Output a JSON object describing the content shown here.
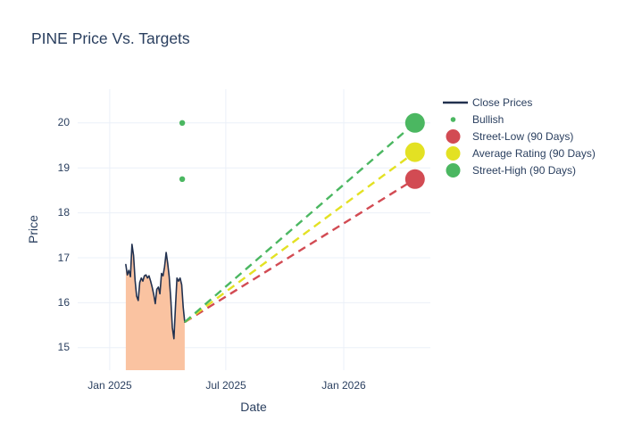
{
  "title": "PINE Price Vs. Targets",
  "colors": {
    "background": "#ffffff",
    "text": "#2a3f5f",
    "grid": "#ebf0f8",
    "close_line": "#22314f",
    "close_fill": "#fac3a1",
    "bullish": "#4bb761",
    "street_low": "#d24b53",
    "average_rating": "#e3e123",
    "street_high": "#4bb761"
  },
  "legend": {
    "items": [
      {
        "label": "Close Prices",
        "swatch": "line"
      },
      {
        "label": "Bullish",
        "swatch": "small-dot"
      },
      {
        "label": "Street-Low (90 Days)",
        "swatch": "circle"
      },
      {
        "label": "Average Rating (90 Days)",
        "swatch": "circle"
      },
      {
        "label": "Street-High (90 Days)",
        "swatch": "circle"
      }
    ]
  },
  "chart_data": {
    "type": "line",
    "title": "PINE Price Vs. Targets",
    "xlabel": "Date",
    "ylabel": "Price",
    "grid": true,
    "legend_position": "right",
    "xlim": [
      "2024-11-12",
      "2026-05-16"
    ],
    "ylim": [
      14.5,
      20.75
    ],
    "yticks": [
      15,
      16,
      17,
      18,
      19,
      20
    ],
    "xticks": [
      {
        "label": "Jan 2025",
        "date": "2025-01-01"
      },
      {
        "label": "Jul 2025",
        "date": "2025-07-01"
      },
      {
        "label": "Jan 2026",
        "date": "2026-01-01"
      }
    ],
    "series": [
      {
        "name": "Close Prices",
        "type": "line+area",
        "color": "#22314f",
        "fill_color": "#fac3a1",
        "start_date": "2025-01-26",
        "end_date": "2025-04-28",
        "prices": [
          16.85,
          16.62,
          16.72,
          16.58,
          17.3,
          17.05,
          16.5,
          16.15,
          16.05,
          16.45,
          16.55,
          16.48,
          16.6,
          16.62,
          16.55,
          16.6,
          16.48,
          16.35,
          16.18,
          15.98,
          16.3,
          16.35,
          16.2,
          16.65,
          16.6,
          16.8,
          17.12,
          16.88,
          16.58,
          16.08,
          15.45,
          15.2,
          15.9,
          16.55,
          16.48,
          16.55,
          16.4,
          15.9,
          15.57
        ]
      },
      {
        "name": "Bullish",
        "type": "scatter",
        "color": "#4bb761",
        "marker_radius": 3.2,
        "points": [
          {
            "date": "2025-04-24",
            "price": 20.0
          },
          {
            "date": "2025-04-24",
            "price": 18.75
          }
        ]
      },
      {
        "name": "Street-Low (90 Days)",
        "type": "projection-dashed",
        "color": "#d24b53",
        "marker_radius": 11,
        "from": {
          "date": "2025-04-28",
          "price": 15.57
        },
        "to": {
          "date": "2026-04-22",
          "price": 18.75
        }
      },
      {
        "name": "Average Rating (90 Days)",
        "type": "projection-dashed",
        "color": "#e3e123",
        "marker_radius": 11,
        "from": {
          "date": "2025-04-28",
          "price": 15.57
        },
        "to": {
          "date": "2026-04-22",
          "price": 19.35
        }
      },
      {
        "name": "Street-High (90 Days)",
        "type": "projection-dashed",
        "color": "#4bb761",
        "marker_radius": 11,
        "from": {
          "date": "2025-04-28",
          "price": 15.57
        },
        "to": {
          "date": "2026-04-22",
          "price": 20.0
        }
      }
    ]
  }
}
